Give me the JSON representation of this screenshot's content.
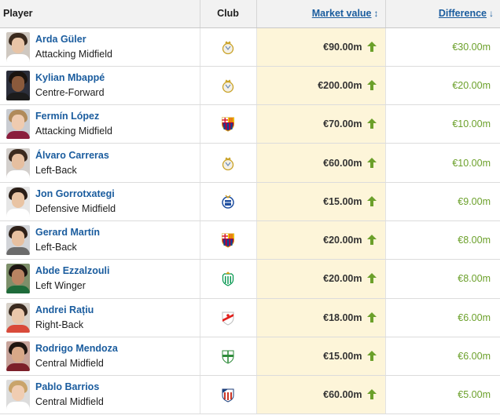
{
  "header": {
    "player": "Player",
    "club": "Club",
    "market_value": "Market value",
    "market_value_sort": "↕",
    "difference": "Difference",
    "difference_sort": "↓"
  },
  "colors": {
    "link": "#1a5c9e",
    "positive": "#6ba02a",
    "highlight_column": "#fdf5d9"
  },
  "rows": [
    {
      "name": "Arda Güler",
      "position": "Attacking Midfield",
      "club": "real-madrid-crest",
      "market_value": "€90.00m",
      "trend": "up-arrow-icon",
      "difference": "€30.00m"
    },
    {
      "name": "Kylian Mbappé",
      "position": "Centre-Forward",
      "club": "real-madrid-crest",
      "market_value": "€200.00m",
      "trend": "up-arrow-icon",
      "difference": "€20.00m"
    },
    {
      "name": "Fermín López",
      "position": "Attacking Midfield",
      "club": "fc-barcelona-crest",
      "market_value": "€70.00m",
      "trend": "up-arrow-icon",
      "difference": "€10.00m"
    },
    {
      "name": "Álvaro Carreras",
      "position": "Left-Back",
      "club": "real-madrid-crest",
      "market_value": "€60.00m",
      "trend": "up-arrow-icon",
      "difference": "€10.00m"
    },
    {
      "name": "Jon Gorrotxategi",
      "position": "Defensive Midfield",
      "club": "real-sociedad-crest",
      "market_value": "€15.00m",
      "trend": "up-arrow-icon",
      "difference": "€9.00m"
    },
    {
      "name": "Gerard Martín",
      "position": "Left-Back",
      "club": "fc-barcelona-crest",
      "market_value": "€20.00m",
      "trend": "up-arrow-icon",
      "difference": "€8.00m"
    },
    {
      "name": "Abde Ezzalzouli",
      "position": "Left Winger",
      "club": "real-betis-crest",
      "market_value": "€20.00m",
      "trend": "up-arrow-icon",
      "difference": "€8.00m"
    },
    {
      "name": "Andrei Rațiu",
      "position": "Right-Back",
      "club": "rayo-vallecano-crest",
      "market_value": "€18.00m",
      "trend": "up-arrow-icon",
      "difference": "€6.00m"
    },
    {
      "name": "Rodrigo Mendoza",
      "position": "Central Midfield",
      "club": "elche-crest",
      "market_value": "€15.00m",
      "trend": "up-arrow-icon",
      "difference": "€6.00m"
    },
    {
      "name": "Pablo Barrios",
      "position": "Central Midfield",
      "club": "atletico-madrid-crest",
      "market_value": "€60.00m",
      "trend": "up-arrow-icon",
      "difference": "€5.00m"
    }
  ]
}
